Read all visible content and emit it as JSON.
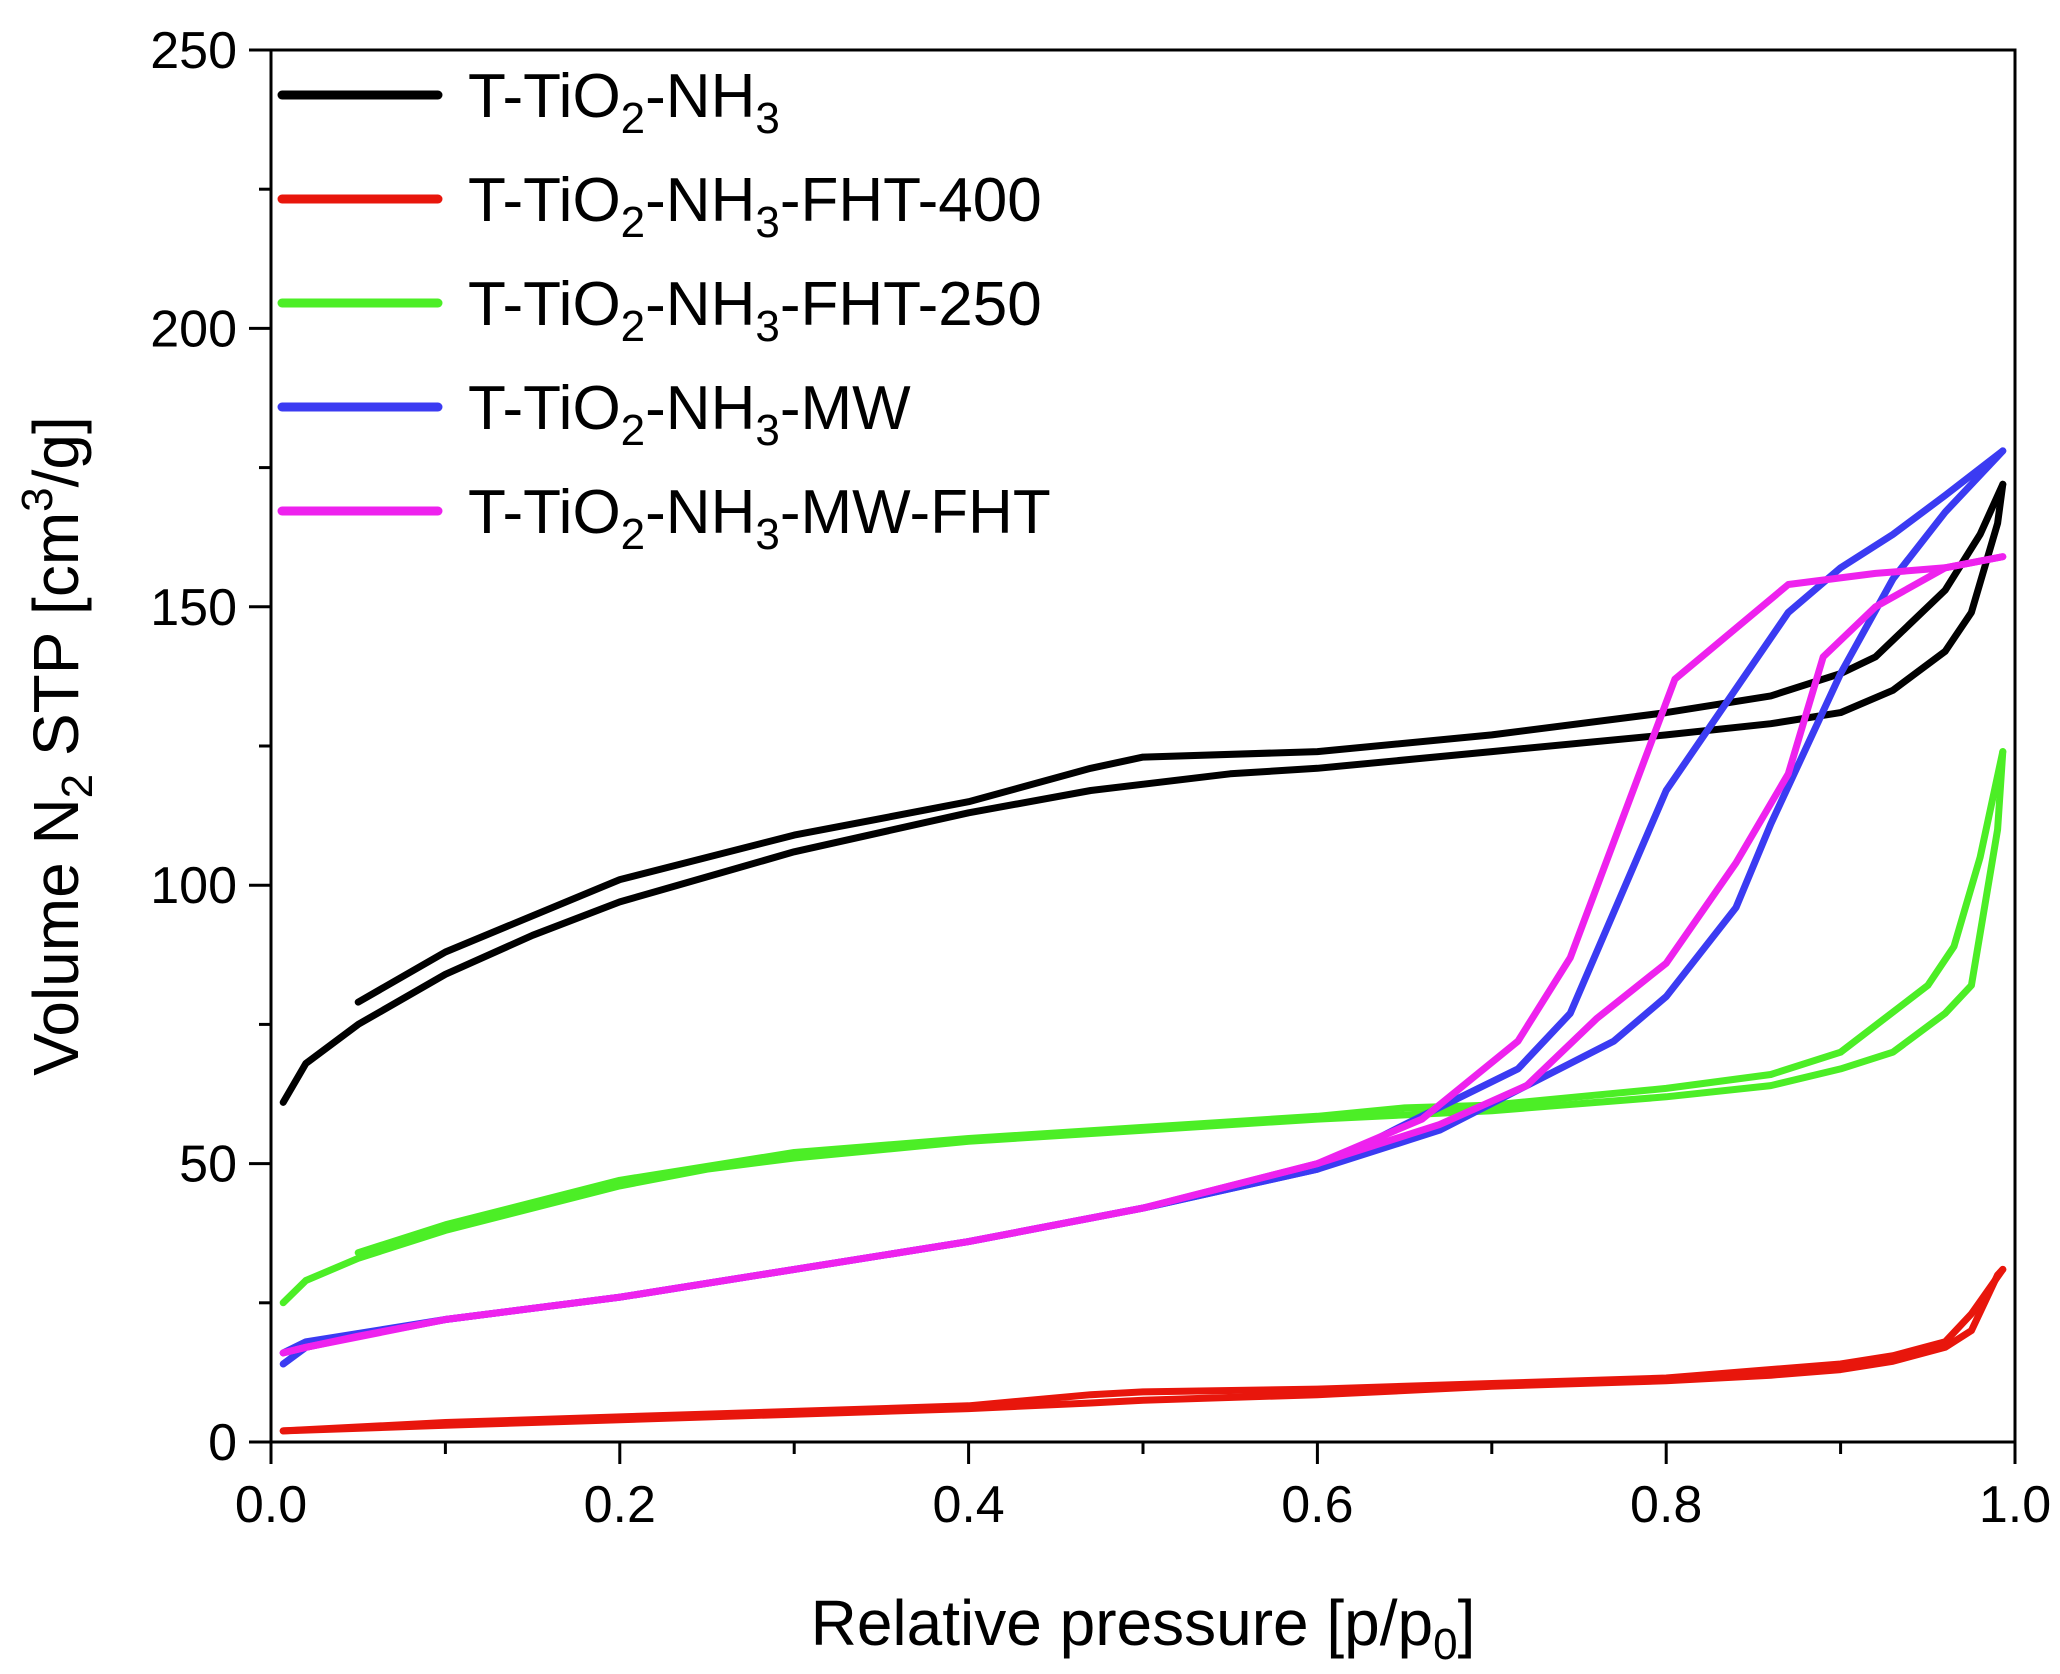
{
  "chart_data": {
    "type": "line",
    "title": "",
    "xlabel": {
      "main": "Relative pressure [p/p",
      "sub": "0",
      "end": "]"
    },
    "ylabel": {
      "a": "Volume N",
      "sub": "2",
      "b": " STP [cm",
      "sup": "3",
      "c": "/g]"
    },
    "xlim": [
      0.0,
      1.0
    ],
    "ylim": [
      0,
      250
    ],
    "x_ticks": [
      "0.0",
      "0.2",
      "0.4",
      "0.6",
      "0.8",
      "1.0"
    ],
    "y_ticks": [
      "0",
      "50",
      "100",
      "150",
      "200",
      "250"
    ],
    "legend_position": "top-left",
    "series": [
      {
        "name": "T-TiO2-NH3",
        "label_parts": [
          "T-TiO",
          "2",
          "-NH",
          "3",
          ""
        ],
        "color": "#000000",
        "adsorption": [
          [
            0.007,
            61
          ],
          [
            0.02,
            68
          ],
          [
            0.05,
            75
          ],
          [
            0.1,
            84
          ],
          [
            0.15,
            91
          ],
          [
            0.2,
            97
          ],
          [
            0.3,
            106
          ],
          [
            0.4,
            113
          ],
          [
            0.47,
            117
          ],
          [
            0.55,
            120
          ],
          [
            0.6,
            121
          ],
          [
            0.7,
            124
          ],
          [
            0.8,
            127
          ],
          [
            0.86,
            129
          ],
          [
            0.9,
            131
          ],
          [
            0.93,
            135
          ],
          [
            0.96,
            142
          ],
          [
            0.975,
            149
          ],
          [
            0.99,
            165
          ],
          [
            0.993,
            172
          ]
        ],
        "desorption": [
          [
            0.993,
            172
          ],
          [
            0.98,
            163
          ],
          [
            0.96,
            153
          ],
          [
            0.92,
            141
          ],
          [
            0.9,
            138
          ],
          [
            0.86,
            134
          ],
          [
            0.8,
            131
          ],
          [
            0.7,
            127
          ],
          [
            0.6,
            124
          ],
          [
            0.5,
            123
          ],
          [
            0.47,
            121
          ],
          [
            0.4,
            115
          ],
          [
            0.3,
            109
          ],
          [
            0.2,
            101
          ],
          [
            0.1,
            88
          ],
          [
            0.05,
            79
          ]
        ]
      },
      {
        "name": "T-TiO2-NH3-FHT-400",
        "label_parts": [
          "T-TiO",
          "2",
          "-NH",
          "3",
          "-FHT-400"
        ],
        "color": "#e8160c",
        "adsorption": [
          [
            0.007,
            2
          ],
          [
            0.1,
            3
          ],
          [
            0.2,
            4
          ],
          [
            0.3,
            5
          ],
          [
            0.4,
            6
          ],
          [
            0.47,
            7
          ],
          [
            0.5,
            7.5
          ],
          [
            0.6,
            8.5
          ],
          [
            0.7,
            10
          ],
          [
            0.8,
            11
          ],
          [
            0.86,
            12
          ],
          [
            0.9,
            13
          ],
          [
            0.93,
            14.5
          ],
          [
            0.96,
            17
          ],
          [
            0.975,
            20
          ],
          [
            0.99,
            30
          ],
          [
            0.993,
            31
          ]
        ],
        "desorption": [
          [
            0.993,
            31
          ],
          [
            0.975,
            23
          ],
          [
            0.96,
            18
          ],
          [
            0.93,
            15.5
          ],
          [
            0.9,
            14
          ],
          [
            0.8,
            11.5
          ],
          [
            0.7,
            10.5
          ],
          [
            0.6,
            9.5
          ],
          [
            0.5,
            9
          ],
          [
            0.47,
            8.5
          ],
          [
            0.4,
            6.5
          ],
          [
            0.3,
            5.5
          ],
          [
            0.2,
            4.5
          ],
          [
            0.1,
            3.5
          ],
          [
            0.007,
            2
          ]
        ]
      },
      {
        "name": "T-TiO2-NH3-FHT-250",
        "label_parts": [
          "T-TiO",
          "2",
          "-NH",
          "3",
          "-FHT-250"
        ],
        "color": "#4cee26",
        "adsorption": [
          [
            0.007,
            25
          ],
          [
            0.02,
            29
          ],
          [
            0.05,
            33
          ],
          [
            0.1,
            38
          ],
          [
            0.15,
            42
          ],
          [
            0.2,
            46
          ],
          [
            0.25,
            49
          ],
          [
            0.3,
            51
          ],
          [
            0.4,
            54
          ],
          [
            0.5,
            56
          ],
          [
            0.6,
            58
          ],
          [
            0.7,
            59.5
          ],
          [
            0.8,
            62
          ],
          [
            0.86,
            64
          ],
          [
            0.9,
            67
          ],
          [
            0.93,
            70
          ],
          [
            0.96,
            77
          ],
          [
            0.975,
            82
          ],
          [
            0.99,
            110
          ],
          [
            0.993,
            124
          ]
        ],
        "desorption": [
          [
            0.993,
            124
          ],
          [
            0.98,
            105
          ],
          [
            0.965,
            89
          ],
          [
            0.95,
            82
          ],
          [
            0.9,
            70
          ],
          [
            0.86,
            66
          ],
          [
            0.8,
            63.5
          ],
          [
            0.7,
            60.5
          ],
          [
            0.65,
            60
          ],
          [
            0.6,
            58.5
          ],
          [
            0.5,
            56.5
          ],
          [
            0.4,
            54.5
          ],
          [
            0.3,
            52
          ],
          [
            0.2,
            47
          ],
          [
            0.1,
            39
          ],
          [
            0.05,
            34
          ]
        ]
      },
      {
        "name": "T-TiO2-NH3-MW",
        "label_parts": [
          "T-TiO",
          "2",
          "-NH",
          "3",
          "-MW"
        ],
        "color": "#3b3bf2",
        "adsorption": [
          [
            0.007,
            14
          ],
          [
            0.02,
            17
          ],
          [
            0.05,
            19
          ],
          [
            0.1,
            22
          ],
          [
            0.2,
            26
          ],
          [
            0.3,
            31
          ],
          [
            0.4,
            36
          ],
          [
            0.5,
            42
          ],
          [
            0.6,
            49
          ],
          [
            0.67,
            56
          ],
          [
            0.72,
            64
          ],
          [
            0.77,
            72
          ],
          [
            0.8,
            80
          ],
          [
            0.84,
            96
          ],
          [
            0.86,
            111
          ],
          [
            0.9,
            138
          ],
          [
            0.93,
            155
          ],
          [
            0.96,
            167
          ],
          [
            0.99,
            177
          ],
          [
            0.993,
            178
          ]
        ],
        "desorption": [
          [
            0.993,
            178
          ],
          [
            0.96,
            170
          ],
          [
            0.93,
            163
          ],
          [
            0.9,
            157
          ],
          [
            0.87,
            149
          ],
          [
            0.8,
            117
          ],
          [
            0.745,
            77
          ],
          [
            0.715,
            67
          ],
          [
            0.65,
            57
          ],
          [
            0.6,
            49
          ],
          [
            0.5,
            42
          ],
          [
            0.4,
            36
          ],
          [
            0.3,
            31
          ],
          [
            0.2,
            26
          ],
          [
            0.1,
            22
          ],
          [
            0.02,
            18
          ],
          [
            0.007,
            16
          ]
        ]
      },
      {
        "name": "T-TiO2-NH3-MW-FHT",
        "label_parts": [
          "T-TiO",
          "2",
          "-NH",
          "3",
          "-MW-FHT"
        ],
        "color": "#ee22ee",
        "adsorption": [
          [
            0.007,
            16
          ],
          [
            0.02,
            17
          ],
          [
            0.05,
            19
          ],
          [
            0.1,
            22
          ],
          [
            0.2,
            26
          ],
          [
            0.3,
            31
          ],
          [
            0.4,
            36
          ],
          [
            0.5,
            42
          ],
          [
            0.6,
            50
          ],
          [
            0.67,
            57
          ],
          [
            0.72,
            64
          ],
          [
            0.76,
            76
          ],
          [
            0.8,
            86
          ],
          [
            0.84,
            104
          ],
          [
            0.87,
            120
          ],
          [
            0.89,
            141
          ],
          [
            0.92,
            150
          ],
          [
            0.96,
            157
          ],
          [
            0.993,
            159
          ]
        ],
        "desorption": [
          [
            0.993,
            159
          ],
          [
            0.96,
            157
          ],
          [
            0.92,
            156
          ],
          [
            0.87,
            154
          ],
          [
            0.805,
            137
          ],
          [
            0.745,
            87
          ],
          [
            0.715,
            72
          ],
          [
            0.66,
            58
          ],
          [
            0.6,
            50
          ],
          [
            0.5,
            42
          ],
          [
            0.4,
            36
          ],
          [
            0.3,
            31
          ],
          [
            0.2,
            26
          ],
          [
            0.1,
            22
          ],
          [
            0.02,
            17
          ],
          [
            0.007,
            16
          ]
        ]
      }
    ]
  }
}
